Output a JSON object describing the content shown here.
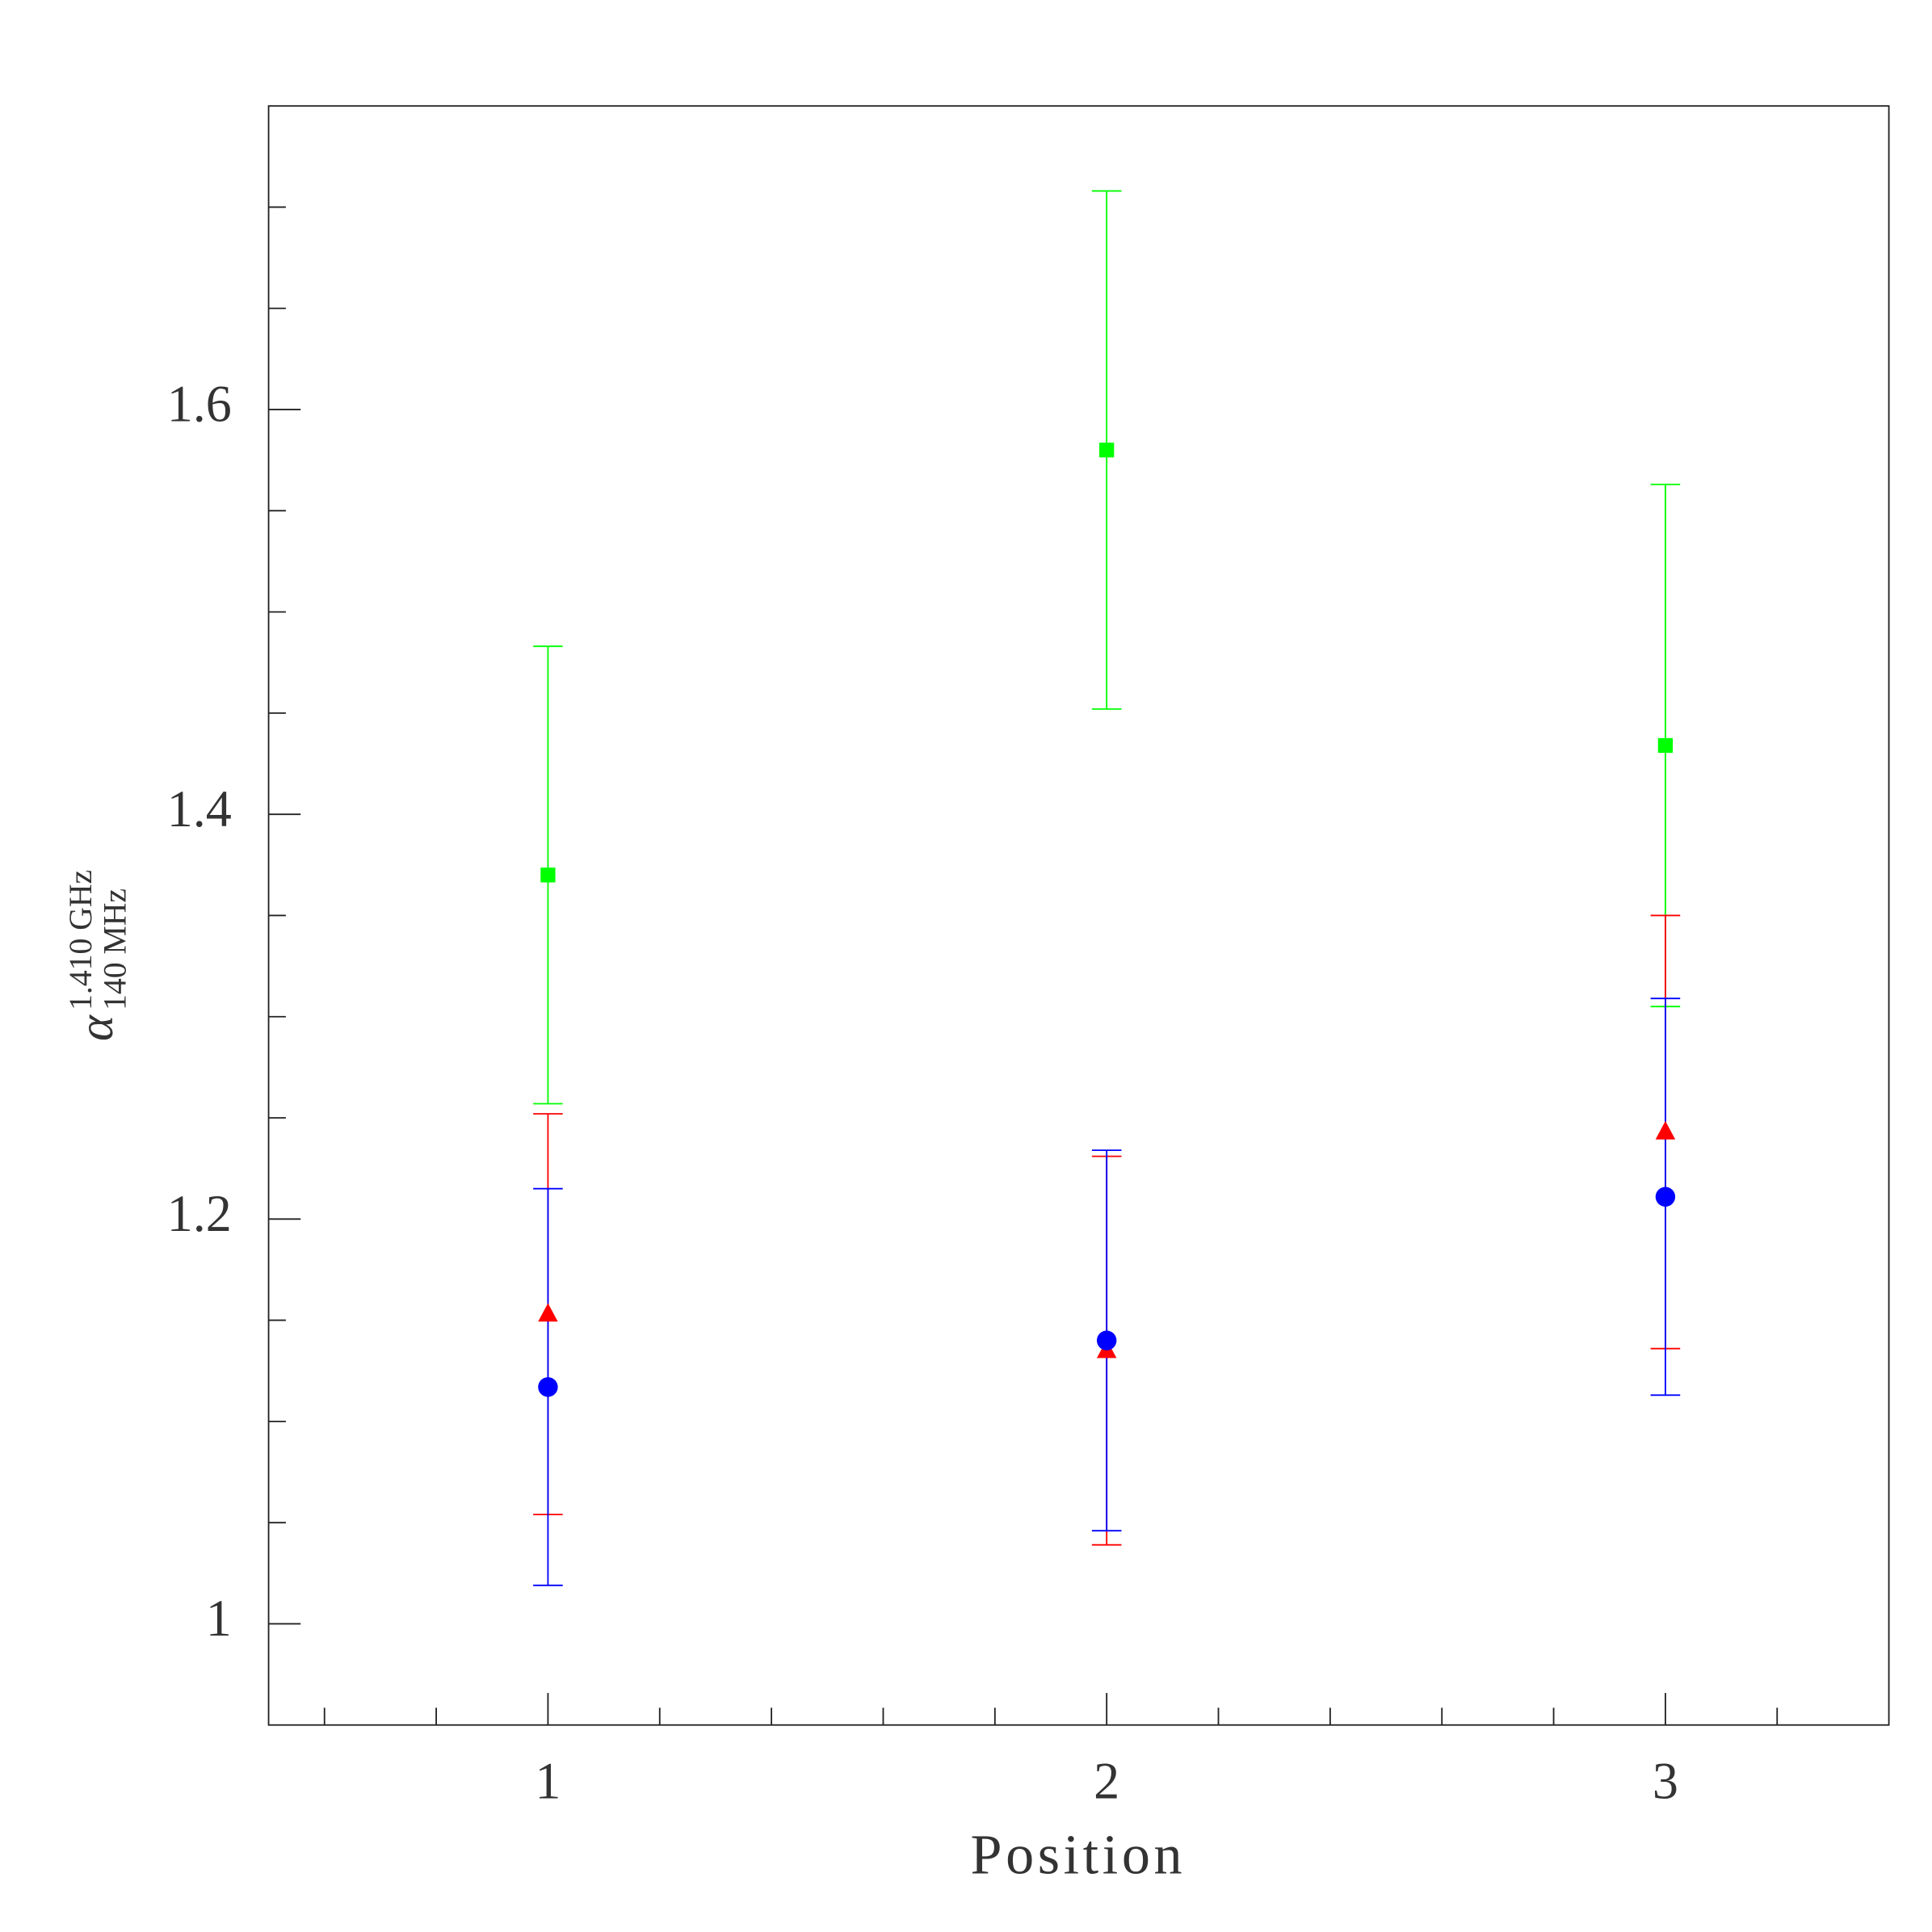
{
  "chart_data": {
    "type": "scatter",
    "xlabel": "Position",
    "ylabel": {
      "symbol": "α",
      "sup": "1.410 GHz",
      "sub": "140 MHz"
    },
    "x": [
      1,
      2,
      3
    ],
    "xlim": [
      0.5,
      3.4
    ],
    "xticks": [
      1,
      2,
      3
    ],
    "xminor": [
      0.6,
      0.8,
      1.2,
      1.4,
      1.6,
      1.8,
      2.2,
      2.4,
      2.6,
      2.8,
      3.2
    ],
    "ylim": [
      0.95,
      1.75
    ],
    "yticks": [
      1,
      1.2,
      1.4,
      1.6
    ],
    "yminor": [
      1.05,
      1.1,
      1.15,
      1.25,
      1.3,
      1.35,
      1.45,
      1.5,
      1.55,
      1.65,
      1.7
    ],
    "grid": false,
    "series": [
      {
        "color": "#00ff00",
        "marker": "square",
        "values": [
          1.37,
          1.58,
          1.434
        ],
        "errors": [
          0.113,
          0.128,
          0.129
        ]
      },
      {
        "color": "#ff0000",
        "marker": "triangle",
        "values": [
          1.153,
          1.135,
          1.243
        ],
        "errors": [
          0.099,
          0.096,
          0.107
        ]
      },
      {
        "color": "#0000ff",
        "marker": "circle",
        "values": [
          1.117,
          1.14,
          1.211
        ],
        "errors": [
          0.098,
          0.094,
          0.098
        ]
      }
    ]
  }
}
